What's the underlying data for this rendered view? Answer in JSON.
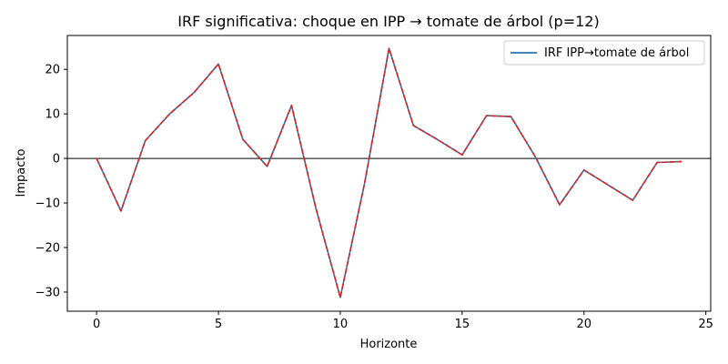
{
  "chart_data": {
    "type": "line",
    "title": "IRF significativa: choque en IPP → tomate de árbol (p=12)",
    "xlabel": "Horizonte",
    "ylabel": "Impacto",
    "xlim": [
      -1.2,
      25.2
    ],
    "ylim": [
      -34.3,
      27.6
    ],
    "xticks": [
      0,
      5,
      10,
      15,
      20,
      25
    ],
    "yticks": [
      -30,
      -20,
      -10,
      0,
      10,
      20
    ],
    "legend_position": "top-right",
    "grid": false,
    "zero_line": true,
    "x": [
      0,
      1,
      2,
      3,
      4,
      5,
      6,
      7,
      8,
      9,
      10,
      11,
      12,
      13,
      14,
      15,
      16,
      17,
      18,
      19,
      20,
      21,
      22,
      23,
      24
    ],
    "series": [
      {
        "name": "IRF IPP→tomate de árbol",
        "color": "#1f77b4",
        "style": "solid",
        "values": [
          0.0,
          -11.8,
          4.0,
          10.0,
          14.8,
          21.2,
          4.3,
          -1.8,
          11.9,
          -11.2,
          -31.2,
          -5.5,
          24.7,
          7.4,
          4.2,
          0.8,
          9.6,
          9.4,
          0.4,
          -10.4,
          -2.6,
          -6.0,
          -9.4,
          -0.9,
          -0.7
        ]
      },
      {
        "color": "#d62728",
        "style": "dashed",
        "values": [
          0.0,
          -11.8,
          4.0,
          10.0,
          14.8,
          21.2,
          4.3,
          -1.8,
          11.9,
          -11.2,
          -31.2,
          -5.5,
          24.7,
          7.4,
          4.2,
          0.8,
          9.6,
          9.4,
          0.4,
          -10.4,
          -2.6,
          -6.0,
          -9.4,
          -0.9,
          -0.7
        ]
      },
      {
        "color": "#d62728",
        "style": "dashed",
        "values": [
          0.0,
          -11.8,
          4.0,
          10.0,
          14.8,
          21.2,
          4.3,
          -1.8,
          11.9,
          -11.2,
          -31.2,
          -5.5,
          24.7,
          7.4,
          4.2,
          0.8,
          9.6,
          9.4,
          0.4,
          -10.4,
          -2.6,
          -6.0,
          -9.4,
          -0.9,
          -0.7
        ]
      }
    ]
  }
}
